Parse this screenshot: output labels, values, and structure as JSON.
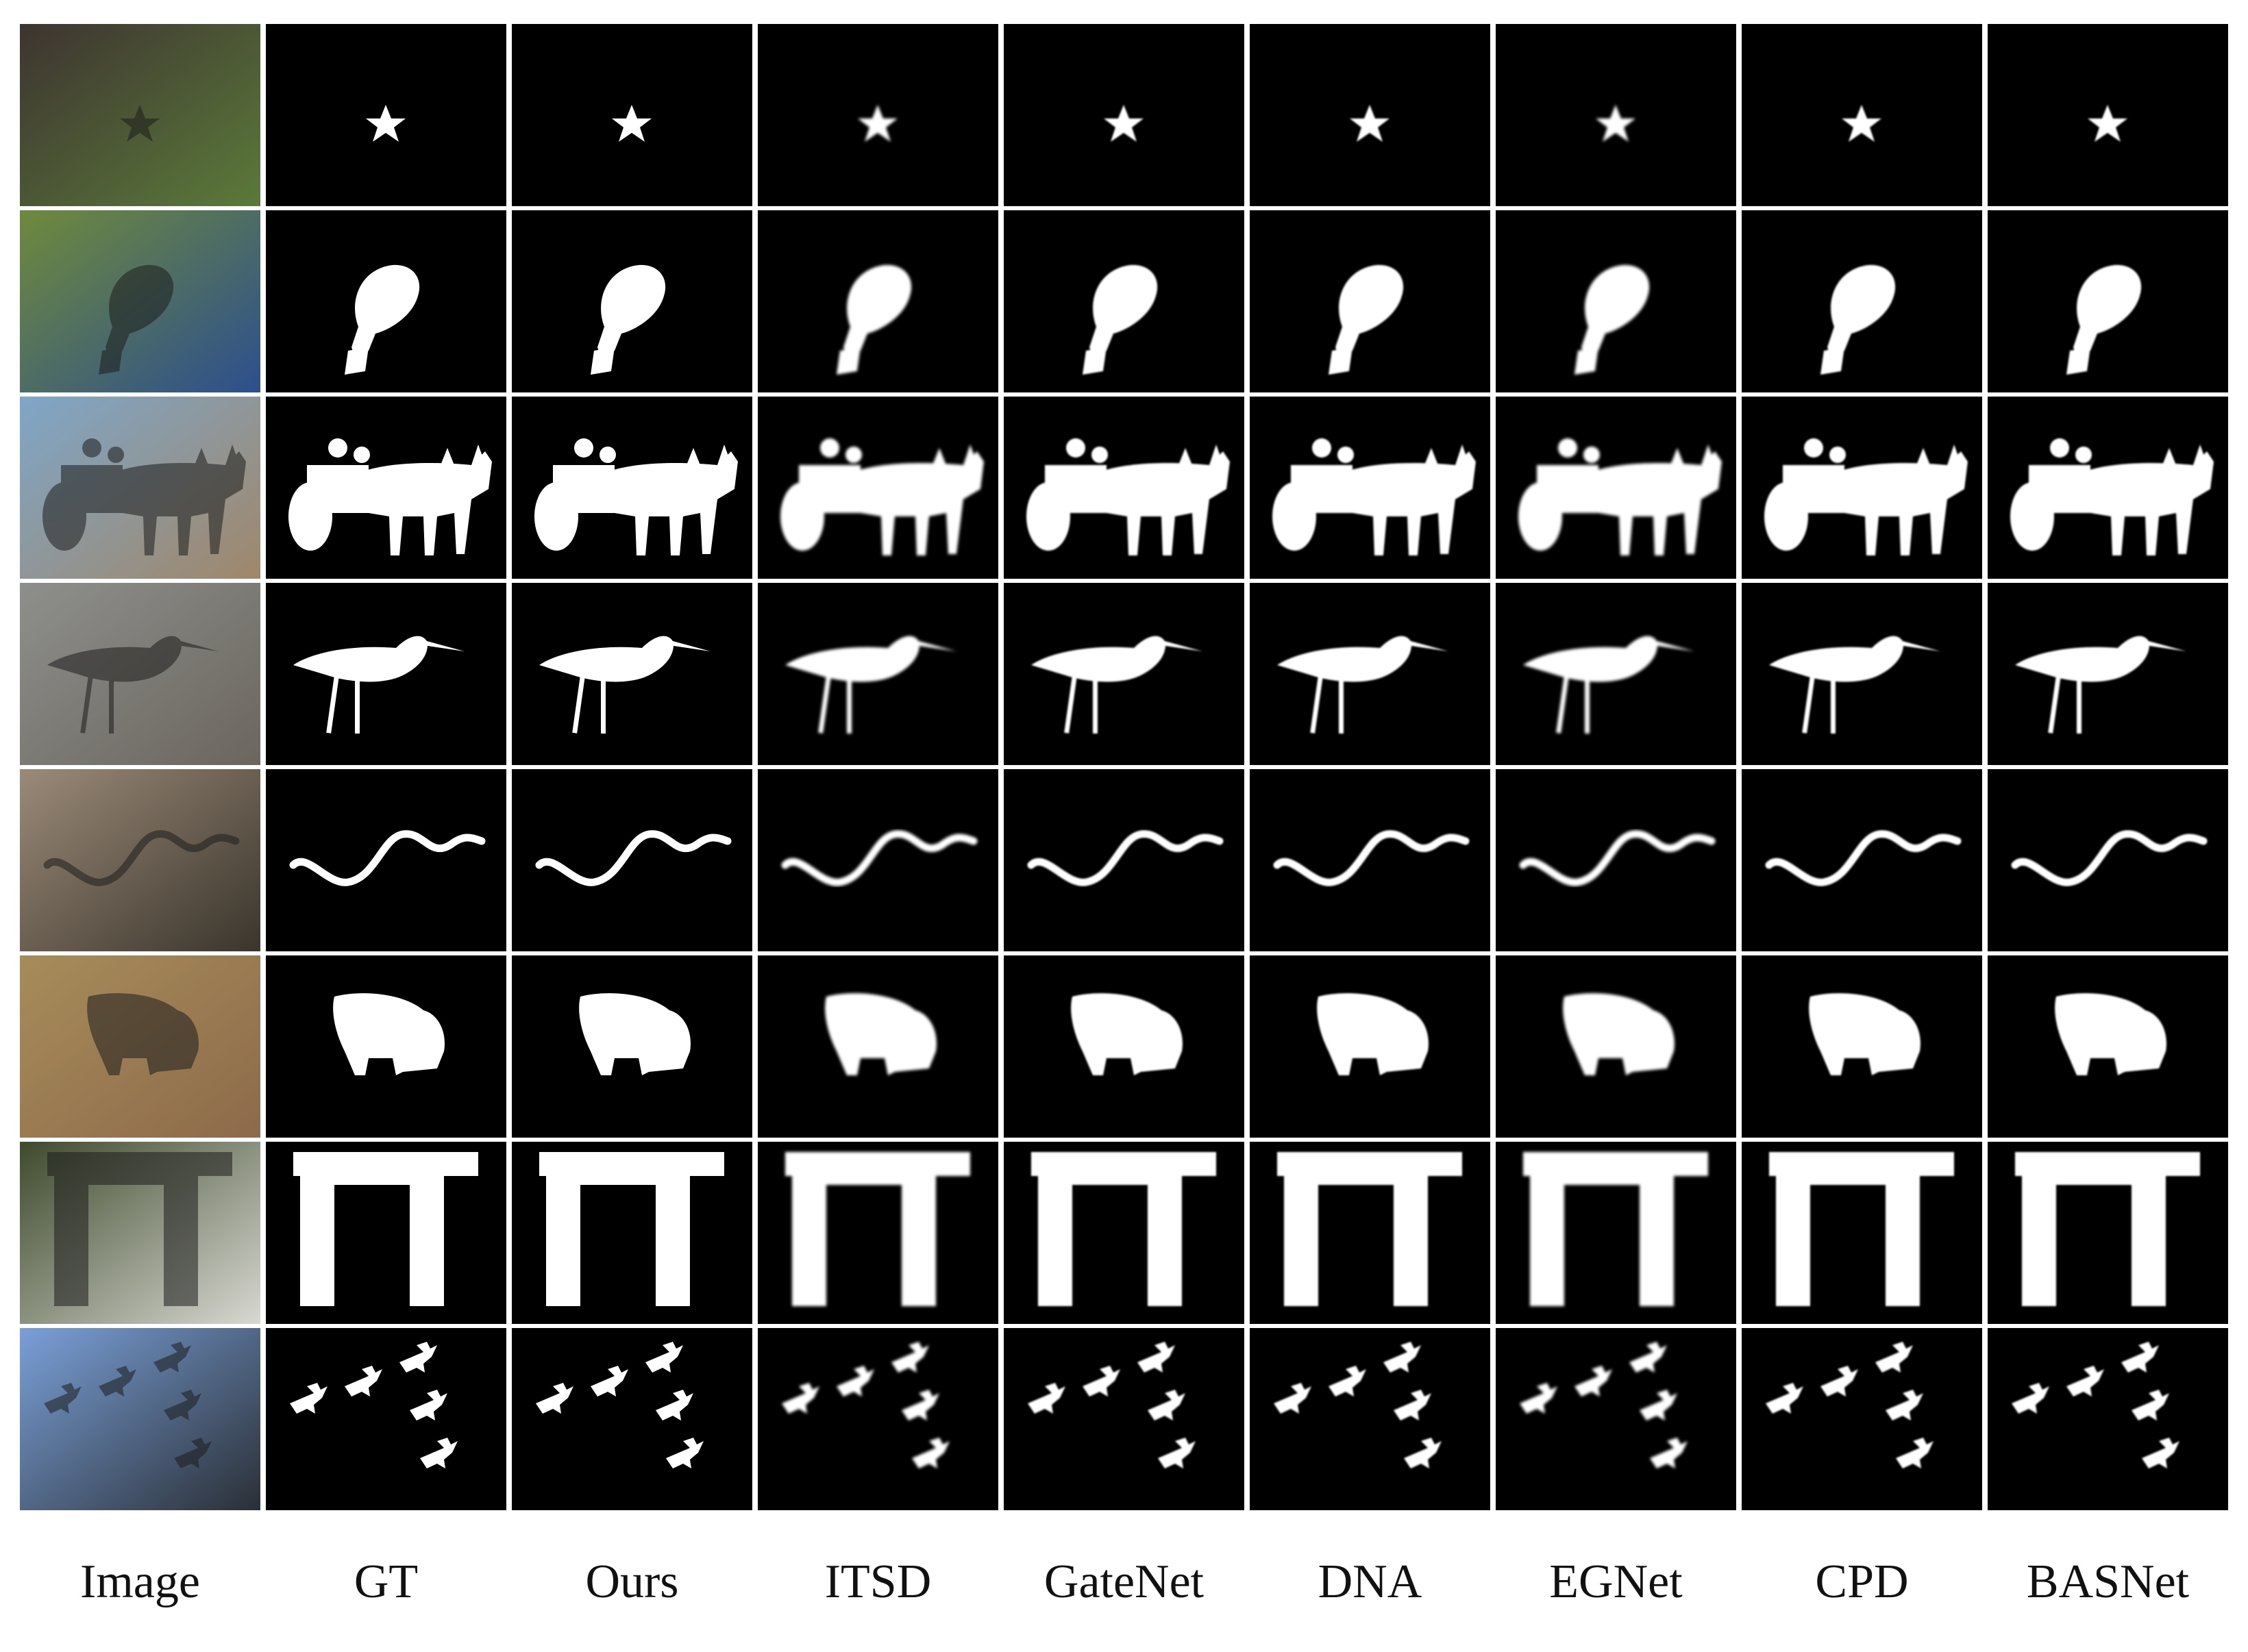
{
  "figure": {
    "columns": [
      {
        "key": "image",
        "label": "Image"
      },
      {
        "key": "gt",
        "label": "GT"
      },
      {
        "key": "ours",
        "label": "Ours"
      },
      {
        "key": "itsd",
        "label": "ITSD"
      },
      {
        "key": "gatenet",
        "label": "GateNet"
      },
      {
        "key": "dna",
        "label": "DNA"
      },
      {
        "key": "egnet",
        "label": "EGNet"
      },
      {
        "key": "cpd",
        "label": "CPD"
      },
      {
        "key": "basnet",
        "label": "BASNet"
      }
    ],
    "rows": [
      {
        "subject": "starfish",
        "photo_colors": [
          "#3d3430",
          "#5b7a3a"
        ]
      },
      {
        "subject": "blue bird",
        "photo_colors": [
          "#6f8a3c",
          "#2c4f8e"
        ]
      },
      {
        "subject": "bullock cart",
        "photo_colors": [
          "#7fa6c8",
          "#a0876a"
        ]
      },
      {
        "subject": "sandpiper",
        "photo_colors": [
          "#8e8f8c",
          "#6b665e"
        ]
      },
      {
        "subject": "snake",
        "photo_colors": [
          "#9b8a78",
          "#3a352c"
        ]
      },
      {
        "subject": "warthog",
        "photo_colors": [
          "#a78c5a",
          "#8d6a4a"
        ]
      },
      {
        "subject": "pergola",
        "photo_colors": [
          "#3e4a2c",
          "#d8d8d2"
        ]
      },
      {
        "subject": "jets",
        "photo_colors": [
          "#7aa0d8",
          "#2a2f36"
        ]
      }
    ]
  }
}
